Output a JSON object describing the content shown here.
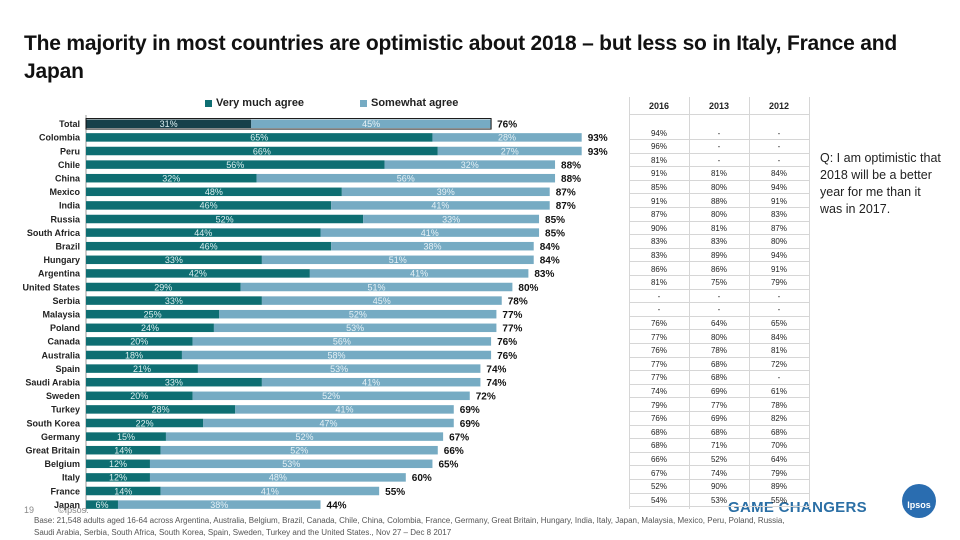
{
  "title": "The majority in most countries are optimistic about 2018 – but less so in Italy, France and Japan",
  "colors": {
    "very": "#0e6e72",
    "somewhat": "#76abc3",
    "highlight": "#17404a"
  },
  "chart_data": {
    "type": "bar",
    "orientation": "horizontal",
    "stacked": true,
    "title": "",
    "xlim": [
      0,
      100
    ],
    "categories": [
      "Total",
      "Colombia",
      "Peru",
      "Chile",
      "China",
      "Mexico",
      "India",
      "Russia",
      "South Africa",
      "Brazil",
      "Hungary",
      "Argentina",
      "United States",
      "Serbia",
      "Malaysia",
      "Poland",
      "Canada",
      "Australia",
      "Spain",
      "Saudi Arabia",
      "Sweden",
      "Turkey",
      "South Korea",
      "Germany",
      "Great Britain",
      "Belgium",
      "Italy",
      "France",
      "Japan"
    ],
    "series": [
      {
        "name": "Very much agree",
        "values": [
          31,
          65,
          66,
          56,
          32,
          48,
          46,
          52,
          44,
          46,
          33,
          42,
          29,
          33,
          25,
          24,
          20,
          18,
          21,
          33,
          20,
          28,
          22,
          15,
          14,
          12,
          12,
          14,
          6
        ],
        "labels": [
          "31%",
          "65%",
          "66%",
          "56%",
          "32%",
          "48%",
          "46%",
          "52%",
          "44%",
          "46%",
          "33%",
          "42%",
          "29%",
          "33%",
          "25%",
          "24%",
          "20%",
          "18%",
          "21%",
          "33%",
          "20%",
          "28%",
          "22%",
          "15%",
          "14%",
          "12%",
          "12%",
          "14%",
          "6%"
        ]
      },
      {
        "name": "Somewhat agree",
        "values": [
          45,
          28,
          27,
          32,
          56,
          39,
          41,
          33,
          41,
          38,
          51,
          41,
          51,
          45,
          52,
          53,
          56,
          58,
          53,
          41,
          52,
          41,
          47,
          52,
          52,
          53,
          48,
          41,
          38
        ],
        "labels": [
          "45%",
          "28%",
          "27%",
          "32%",
          "56%",
          "39%",
          "41%",
          "33%",
          "41%",
          "38%",
          "51%",
          "41%",
          "51%",
          "45%",
          "52%",
          "53%",
          "56%",
          "58%",
          "53%",
          "41%",
          "52%",
          "41%",
          "47%",
          "52%",
          "52%",
          "53%",
          "48%",
          "41%",
          "38%"
        ]
      }
    ],
    "totals": [
      "76%",
      "93%",
      "93%",
      "88%",
      "88%",
      "87%",
      "87%",
      "85%",
      "85%",
      "84%",
      "84%",
      "83%",
      "80%",
      "78%",
      "77%",
      "77%",
      "76%",
      "76%",
      "74%",
      "74%",
      "72%",
      "69%",
      "69%",
      "67%",
      "66%",
      "65%",
      "60%",
      "55%",
      "44%"
    ],
    "comparison_years": [
      "2016",
      "2013",
      "2012"
    ],
    "comparison_values": [
      [
        "94%",
        "-",
        "-"
      ],
      [
        "96%",
        "-",
        "-"
      ],
      [
        "81%",
        "-",
        "-"
      ],
      [
        "91%",
        "81%",
        "84%"
      ],
      [
        "85%",
        "80%",
        "94%"
      ],
      [
        "91%",
        "88%",
        "91%"
      ],
      [
        "87%",
        "80%",
        "83%"
      ],
      [
        "90%",
        "81%",
        "87%"
      ],
      [
        "83%",
        "83%",
        "80%"
      ],
      [
        "83%",
        "89%",
        "94%"
      ],
      [
        "86%",
        "86%",
        "91%"
      ],
      [
        "81%",
        "75%",
        "79%"
      ],
      [
        "-",
        "-",
        "-"
      ],
      [
        "-",
        "-",
        "-"
      ],
      [
        "76%",
        "64%",
        "65%"
      ],
      [
        "77%",
        "80%",
        "84%"
      ],
      [
        "76%",
        "78%",
        "81%"
      ],
      [
        "77%",
        "68%",
        "72%"
      ],
      [
        "77%",
        "68%",
        "-"
      ],
      [
        "74%",
        "69%",
        "61%"
      ],
      [
        "79%",
        "77%",
        "78%"
      ],
      [
        "76%",
        "69%",
        "82%"
      ],
      [
        "68%",
        "68%",
        "68%"
      ],
      [
        "68%",
        "71%",
        "70%"
      ],
      [
        "66%",
        "52%",
        "64%"
      ],
      [
        "67%",
        "74%",
        "79%"
      ],
      [
        "52%",
        "90%",
        "89%"
      ],
      [
        "54%",
        "53%",
        "55%"
      ]
    ]
  },
  "question": "Q: I am optimistic that 2018 will be a better year for me than it was in 2017.",
  "footer": "Base: 21,548 adults aged 16-64 across Argentina, Australia, Belgium, Brazil, Canada, Chile, China, Colombia, France, Germany, Great Britain, Hungary, India, Italy, Japan, Malaysia, Mexico, Peru, Poland, Russia, Saudi Arabia, Serbia, South Africa, South Korea, Spain, Sweden, Turkey and the United States., Nov 27 – Dec 8 2017",
  "page_number": "19",
  "copyright": "©Ipsos.",
  "brand_tagline": "GAME CHANGERS",
  "brand_logo_text": "Ipsos"
}
